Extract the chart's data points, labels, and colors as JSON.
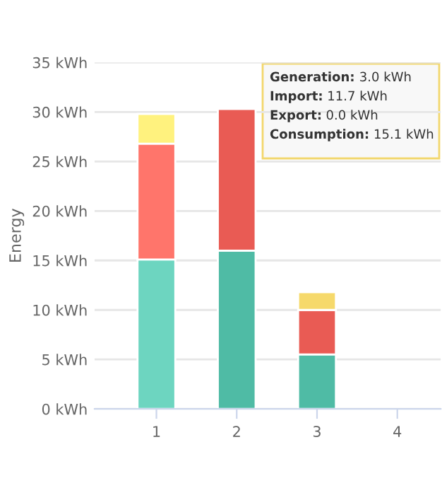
{
  "chart_data": {
    "type": "bar",
    "stacked": true,
    "ylabel": "Energy",
    "categories": [
      "1",
      "2",
      "3",
      "4"
    ],
    "series": [
      {
        "color": "#4fbba5",
        "colors": [
          "#6dd5c0",
          null,
          null,
          null
        ],
        "values": [
          15.1,
          16.0,
          5.5,
          null
        ]
      },
      {
        "color": "#e95b54",
        "colors": [
          "#ff756b",
          null,
          null,
          null
        ],
        "values": [
          11.7,
          14.3,
          4.5,
          null
        ]
      },
      {
        "color": "#f6d96b",
        "colors": [
          "#fff27e",
          null,
          null,
          null
        ],
        "values": [
          3.0,
          null,
          1.8,
          null
        ]
      }
    ],
    "ylim": [
      0,
      35
    ],
    "yticks": [
      {
        "value": 0,
        "label": "0 kWh"
      },
      {
        "value": 5,
        "label": "5 kWh"
      },
      {
        "value": 10,
        "label": "10 kWh"
      },
      {
        "value": 15,
        "label": "15 kWh"
      },
      {
        "value": 20,
        "label": "20 kWh"
      },
      {
        "value": 25,
        "label": "25 kWh"
      },
      {
        "value": 30,
        "label": "30 kWh"
      },
      {
        "value": 35,
        "label": "35 kWh"
      }
    ],
    "grid": "y",
    "legend": false,
    "annotations": [
      "Generation: 3.0 kWh",
      "Import: 11.7 kWh",
      "Export: 0.0 kWh",
      "Consumption: 15.1 kWh"
    ]
  }
}
